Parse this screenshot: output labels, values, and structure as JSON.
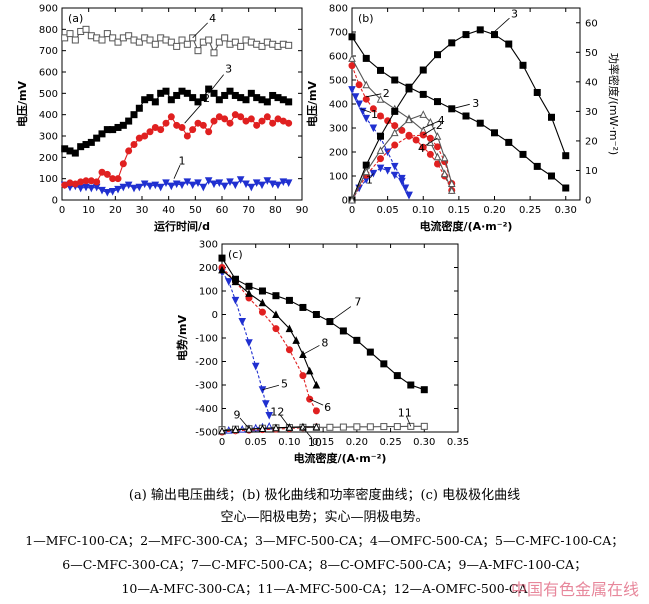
{
  "figure_title": "",
  "caption": {
    "line1": "(a) 输出电压曲线；(b) 极化曲线和功率密度曲线；(c) 电极极化曲线",
    "line2": "空心—阳极电势；实心—阴极电势。",
    "line3": "1—MFC-100-CA；2—MFC-300-CA；3—MFC-500-CA；4—OMFC-500-CA；5—C-MFC-100-CA；",
    "line4": "6—C-MFC-300-CA；7—C-MFC-500-CA；8—C-OMFC-500-CA；9—A-MFC-100-CA；",
    "line5": "10—A-MFC-300-CA；11—A-MFC-500-CA；12—A-OMFC-500-CA"
  },
  "watermark": "中国有色金属在线",
  "colors": {
    "black": "#000000",
    "red": "#e02020",
    "blue": "#2030d0",
    "gray": "#555555"
  },
  "chart_data": [
    {
      "panel": "(a)",
      "type": "line",
      "xlabel": "运行时间/d",
      "ylabel": "电压/mV",
      "xlim": [
        0,
        90
      ],
      "ylim": [
        0,
        900
      ],
      "xticks": [
        0,
        10,
        20,
        30,
        40,
        50,
        60,
        70,
        80,
        90
      ],
      "yticks": [
        0,
        100,
        200,
        300,
        400,
        500,
        600,
        700,
        800,
        900
      ],
      "series": [
        {
          "name": "1",
          "color": "#2030d0",
          "marker": "triangle-down",
          "x": [
            1,
            3,
            5,
            7,
            9,
            11,
            13,
            15,
            17,
            19,
            21,
            23,
            25,
            27,
            29,
            31,
            33,
            35,
            37,
            39,
            41,
            43,
            45,
            47,
            49,
            51,
            53,
            55,
            57,
            59,
            61,
            63,
            65,
            67,
            69,
            71,
            73,
            75,
            77,
            79,
            81,
            83,
            85
          ],
          "y": [
            70,
            60,
            65,
            55,
            60,
            55,
            60,
            45,
            35,
            40,
            50,
            60,
            70,
            55,
            60,
            75,
            65,
            70,
            60,
            80,
            65,
            75,
            70,
            85,
            70,
            80,
            60,
            90,
            75,
            80,
            65,
            85,
            70,
            95,
            75,
            60,
            80,
            70,
            90,
            75,
            70,
            85,
            80
          ]
        },
        {
          "name": "2",
          "color": "#e02020",
          "marker": "circle",
          "x": [
            1,
            3,
            5,
            7,
            9,
            11,
            13,
            15,
            17,
            19,
            21,
            23,
            25,
            27,
            29,
            31,
            33,
            35,
            37,
            39,
            41,
            43,
            45,
            47,
            49,
            51,
            53,
            55,
            57,
            59,
            61,
            63,
            65,
            67,
            69,
            71,
            73,
            75,
            77,
            79,
            81,
            83,
            85
          ],
          "y": [
            70,
            80,
            75,
            85,
            90,
            90,
            85,
            130,
            120,
            100,
            100,
            170,
            230,
            260,
            290,
            300,
            320,
            340,
            330,
            360,
            390,
            350,
            340,
            300,
            330,
            360,
            350,
            320,
            370,
            390,
            380,
            360,
            400,
            390,
            370,
            380,
            350,
            370,
            390,
            360,
            380,
            370,
            360
          ]
        },
        {
          "name": "3",
          "color": "#000000",
          "marker": "square",
          "x": [
            1,
            3,
            5,
            7,
            9,
            11,
            13,
            15,
            17,
            19,
            21,
            23,
            25,
            27,
            29,
            31,
            33,
            35,
            37,
            39,
            41,
            43,
            45,
            47,
            49,
            51,
            53,
            55,
            57,
            59,
            61,
            63,
            65,
            67,
            69,
            71,
            73,
            75,
            77,
            79,
            81,
            83,
            85
          ],
          "y": [
            240,
            230,
            220,
            250,
            260,
            270,
            290,
            310,
            330,
            330,
            340,
            350,
            370,
            400,
            430,
            470,
            480,
            460,
            500,
            510,
            470,
            490,
            510,
            500,
            480,
            460,
            480,
            520,
            500,
            470,
            490,
            510,
            490,
            480,
            470,
            500,
            480,
            470,
            460,
            490,
            480,
            470,
            460
          ]
        },
        {
          "name": "4",
          "color": "#555555",
          "marker": "square-open",
          "x": [
            1,
            3,
            5,
            7,
            9,
            11,
            13,
            15,
            17,
            19,
            21,
            23,
            25,
            27,
            29,
            31,
            33,
            35,
            37,
            39,
            41,
            43,
            45,
            47,
            49,
            51,
            53,
            55,
            57,
            59,
            61,
            63,
            65,
            67,
            69,
            71,
            73,
            75,
            77,
            79,
            81,
            83,
            85
          ],
          "y": [
            760,
            780,
            750,
            790,
            800,
            770,
            760,
            750,
            780,
            760,
            740,
            760,
            770,
            750,
            740,
            760,
            750,
            730,
            760,
            750,
            740,
            720,
            750,
            730,
            760,
            700,
            740,
            750,
            690,
            740,
            760,
            730,
            740,
            720,
            750,
            740,
            730,
            720,
            740,
            730,
            720,
            730,
            725
          ]
        }
      ],
      "annotations": [
        "1",
        "2",
        "3",
        "4"
      ]
    },
    {
      "panel": "(b)",
      "type": "line",
      "xlabel": "电流密度/(A·m⁻²)",
      "ylabel": "电压/mV",
      "y2label": "功率密度/(mW·m⁻²)",
      "xlim": [
        0,
        0.32
      ],
      "ylim": [
        0,
        800
      ],
      "y2lim": [
        0,
        65
      ],
      "xticks": [
        0,
        0.05,
        0.1,
        0.15,
        0.2,
        0.25,
        0.3
      ],
      "yticks": [
        0,
        100,
        200,
        300,
        400,
        500,
        600,
        700,
        800
      ],
      "y2ticks": [
        0,
        10,
        20,
        30,
        40,
        50,
        60
      ],
      "series": [
        {
          "name": "1",
          "axis": "left",
          "kind": "polarization",
          "color": "#2030d0",
          "marker": "triangle-down",
          "x": [
            0,
            0.005,
            0.01,
            0.015,
            0.02,
            0.03,
            0.04,
            0.05,
            0.06,
            0.07,
            0.075,
            0.08
          ],
          "y": [
            460,
            430,
            400,
            370,
            340,
            300,
            260,
            200,
            140,
            90,
            50,
            20
          ]
        },
        {
          "name": "2",
          "axis": "left",
          "kind": "polarization",
          "color": "#e02020",
          "marker": "circle",
          "x": [
            0,
            0.01,
            0.02,
            0.03,
            0.04,
            0.05,
            0.06,
            0.07,
            0.08,
            0.09,
            0.1,
            0.11,
            0.12,
            0.13,
            0.14
          ],
          "y": [
            560,
            480,
            420,
            380,
            350,
            330,
            310,
            290,
            270,
            250,
            220,
            190,
            150,
            100,
            40
          ]
        },
        {
          "name": "3",
          "axis": "left",
          "kind": "polarization",
          "color": "#000000",
          "marker": "square",
          "x": [
            0,
            0.02,
            0.04,
            0.06,
            0.08,
            0.1,
            0.12,
            0.14,
            0.16,
            0.18,
            0.2,
            0.22,
            0.24,
            0.26,
            0.28,
            0.3
          ],
          "y": [
            680,
            590,
            540,
            500,
            470,
            440,
            410,
            380,
            350,
            320,
            280,
            240,
            190,
            140,
            100,
            50
          ]
        },
        {
          "name": "4",
          "axis": "left",
          "kind": "polarization",
          "color": "#555555",
          "marker": "triangle-open",
          "x": [
            0,
            0.02,
            0.04,
            0.06,
            0.08,
            0.1,
            0.11,
            0.12,
            0.13,
            0.14
          ],
          "y": [
            590,
            480,
            420,
            380,
            340,
            290,
            240,
            180,
            110,
            40
          ]
        },
        {
          "name": "1",
          "axis": "right",
          "kind": "power",
          "color": "#2030d0",
          "marker": "triangle-down",
          "x": [
            0,
            0.01,
            0.02,
            0.03,
            0.04,
            0.05,
            0.06,
            0.07,
            0.08
          ],
          "y": [
            0,
            4,
            6.8,
            9,
            10.8,
            10,
            8.4,
            6.3,
            1.6
          ]
        },
        {
          "name": "2",
          "axis": "right",
          "kind": "power",
          "color": "#e02020",
          "marker": "circle",
          "x": [
            0,
            0.02,
            0.04,
            0.06,
            0.08,
            0.1,
            0.11,
            0.12,
            0.13,
            0.14
          ],
          "y": [
            0,
            8.4,
            14,
            18.6,
            21.6,
            22,
            20.9,
            18,
            13,
            5.6
          ]
        },
        {
          "name": "3",
          "axis": "right",
          "kind": "power",
          "color": "#000000",
          "marker": "square",
          "x": [
            0,
            0.02,
            0.04,
            0.06,
            0.08,
            0.1,
            0.12,
            0.14,
            0.16,
            0.18,
            0.2,
            0.22,
            0.24,
            0.26,
            0.28,
            0.3
          ],
          "y": [
            0,
            11.8,
            21.6,
            30,
            37.6,
            44,
            49.2,
            53.2,
            56,
            57.6,
            56,
            52.8,
            45.6,
            36.4,
            28,
            15
          ]
        },
        {
          "name": "4",
          "axis": "right",
          "kind": "power",
          "color": "#555555",
          "marker": "triangle-open",
          "x": [
            0,
            0.02,
            0.04,
            0.06,
            0.08,
            0.1,
            0.11,
            0.12,
            0.13,
            0.14
          ],
          "y": [
            0,
            9.6,
            16.8,
            22.8,
            27.2,
            29,
            26.4,
            21.6,
            14.3,
            5.6
          ]
        }
      ],
      "annotations": [
        "1",
        "2",
        "3",
        "4",
        "1",
        "2",
        "3",
        "4"
      ]
    },
    {
      "panel": "(c)",
      "type": "line",
      "xlabel": "电流密度/(A·m⁻²)",
      "ylabel": "电势/mV",
      "xlim": [
        0,
        0.35
      ],
      "ylim": [
        -500,
        300
      ],
      "xticks": [
        0,
        0.05,
        0.1,
        0.15,
        0.2,
        0.25,
        0.3,
        0.35
      ],
      "yticks": [
        -500,
        -400,
        -300,
        -200,
        -100,
        0,
        100,
        200,
        300
      ],
      "series": [
        {
          "name": "5",
          "color": "#2030d0",
          "marker": "triangle-down",
          "x": [
            0,
            0.01,
            0.02,
            0.03,
            0.04,
            0.05,
            0.06,
            0.065,
            0.07
          ],
          "y": [
            180,
            140,
            60,
            -30,
            -120,
            -220,
            -320,
            -380,
            -430
          ]
        },
        {
          "name": "6",
          "color": "#e02020",
          "marker": "circle",
          "x": [
            0,
            0.02,
            0.04,
            0.06,
            0.08,
            0.1,
            0.12,
            0.13,
            0.14
          ],
          "y": [
            200,
            140,
            70,
            10,
            -60,
            -150,
            -260,
            -360,
            -410
          ]
        },
        {
          "name": "7",
          "color": "#000000",
          "marker": "square",
          "x": [
            0,
            0.02,
            0.04,
            0.06,
            0.08,
            0.1,
            0.12,
            0.14,
            0.16,
            0.18,
            0.2,
            0.22,
            0.24,
            0.26,
            0.28,
            0.3
          ],
          "y": [
            240,
            150,
            120,
            100,
            80,
            60,
            30,
            0,
            -30,
            -70,
            -110,
            -160,
            -210,
            -260,
            -300,
            -320
          ]
        },
        {
          "name": "8",
          "color": "#000000",
          "marker": "triangle",
          "x": [
            0,
            0.02,
            0.04,
            0.06,
            0.08,
            0.1,
            0.11,
            0.12,
            0.13,
            0.14
          ],
          "y": [
            190,
            140,
            90,
            50,
            0,
            -60,
            -110,
            -170,
            -240,
            -300
          ]
        },
        {
          "name": "9",
          "color": "#2030d0",
          "marker": "triangle-open",
          "x": [
            0,
            0.01,
            0.02,
            0.03,
            0.04,
            0.05,
            0.06,
            0.07
          ],
          "y": [
            -495,
            -492,
            -490,
            -488,
            -485,
            -482,
            -478,
            -475
          ]
        },
        {
          "name": "10",
          "color": "#e02020",
          "marker": "circle-open",
          "x": [
            0,
            0.02,
            0.04,
            0.06,
            0.08,
            0.1,
            0.12,
            0.14
          ],
          "y": [
            -500,
            -495,
            -492,
            -490,
            -488,
            -485,
            -482,
            -478
          ]
        },
        {
          "name": "11",
          "color": "#555555",
          "marker": "square-open",
          "x": [
            0,
            0.02,
            0.04,
            0.06,
            0.08,
            0.1,
            0.12,
            0.14,
            0.16,
            0.18,
            0.2,
            0.22,
            0.24,
            0.26,
            0.28,
            0.3
          ],
          "y": [
            -490,
            -488,
            -486,
            -484,
            -482,
            -481,
            -480,
            -480,
            -480,
            -479,
            -478,
            -478,
            -477,
            -477,
            -476,
            -476
          ]
        },
        {
          "name": "12",
          "color": "#000000",
          "marker": "triangle-open",
          "x": [
            0,
            0.02,
            0.04,
            0.06,
            0.08,
            0.1,
            0.12,
            0.14
          ],
          "y": [
            -495,
            -490,
            -488,
            -485,
            -482,
            -480,
            -478,
            -478
          ]
        }
      ],
      "annotations": [
        "5",
        "6",
        "7",
        "8",
        "9",
        "10",
        "11",
        "12"
      ]
    }
  ]
}
